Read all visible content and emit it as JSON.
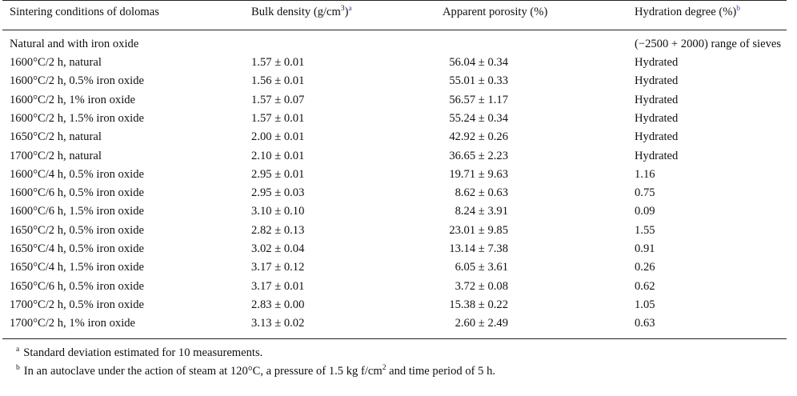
{
  "table": {
    "headers": {
      "conditions": "Sintering conditions of dolomas",
      "density_pre": "Bulk density (g/cm",
      "density_exp": "3",
      "density_post": ")",
      "density_mark": "a",
      "porosity": "Apparent porosity (%)",
      "hydration": "Hydration degree (%)",
      "hydration_mark": "b"
    },
    "group_row": {
      "label": "Natural and with iron oxide",
      "hydration_note": "(−2500 + 2000) range of sieves"
    },
    "rows": [
      {
        "condition": "1600°C/2 h, natural",
        "density": "1.57 ± 0.01",
        "porosity": "56.04 ± 0.34",
        "hydration": "Hydrated"
      },
      {
        "condition": "1600°C/2 h, 0.5% iron oxide",
        "density": "1.56 ± 0.01",
        "porosity": "55.01 ± 0.33",
        "hydration": "Hydrated"
      },
      {
        "condition": "1600°C/2 h, 1% iron oxide",
        "density": "1.57 ± 0.07",
        "porosity": "56.57 ± 1.17",
        "hydration": "Hydrated"
      },
      {
        "condition": "1600°C/2 h, 1.5% iron oxide",
        "density": "1.57 ± 0.01",
        "porosity": "55.24 ± 0.34",
        "hydration": "Hydrated"
      },
      {
        "condition": "1650°C/2 h, natural",
        "density": "2.00 ± 0.01",
        "porosity": "42.92 ± 0.26",
        "hydration": "Hydrated"
      },
      {
        "condition": "1700°C/2 h, natural",
        "density": "2.10 ± 0.01",
        "porosity": "36.65 ± 2.23",
        "hydration": "Hydrated"
      },
      {
        "condition": "1600°C/4 h, 0.5% iron oxide",
        "density": "2.95 ± 0.01",
        "porosity": "19.71 ± 9.63",
        "hydration": "1.16"
      },
      {
        "condition": "1600°C/6 h, 0.5% iron oxide",
        "density": "2.95 ± 0.03",
        "porosity": "8.62 ± 0.63",
        "hydration": "0.75"
      },
      {
        "condition": "1600°C/6 h, 1.5% iron oxide",
        "density": "3.10 ± 0.10",
        "porosity": "8.24 ± 3.91",
        "hydration": "0.09"
      },
      {
        "condition": "1650°C/2 h, 0.5% iron oxide",
        "density": "2.82 ± 0.13",
        "porosity": "23.01 ± 9.85",
        "hydration": "1.55"
      },
      {
        "condition": "1650°C/4 h, 0.5% iron oxide",
        "density": "3.02 ± 0.04",
        "porosity": "13.14 ± 7.38",
        "hydration": "0.91"
      },
      {
        "condition": "1650°C/4 h, 1.5% iron oxide",
        "density": "3.17 ± 0.12",
        "porosity": "6.05 ± 3.61",
        "hydration": "0.26"
      },
      {
        "condition": "1650°C/6 h, 0.5% iron oxide",
        "density": "3.17 ± 0.01",
        "porosity": "3.72 ± 0.08",
        "hydration": "0.62"
      },
      {
        "condition": "1700°C/2 h, 0.5% iron oxide",
        "density": "2.83 ± 0.00",
        "porosity": "15.38 ± 0.22",
        "hydration": "1.05"
      },
      {
        "condition": "1700°C/2 h, 1% iron oxide",
        "density": "3.13 ± 0.02",
        "porosity": "2.60 ± 2.49",
        "hydration": "0.63"
      }
    ]
  },
  "footnotes": {
    "a_mark": "a",
    "a_text": "Standard deviation estimated for 10 measurements.",
    "b_mark": "b",
    "b_text_pre": "In an autoclave under the action of steam at 120°C, a pressure of 1.5 kg f/cm",
    "b_text_exp": "2",
    "b_text_post": " and time period of 5 h."
  }
}
